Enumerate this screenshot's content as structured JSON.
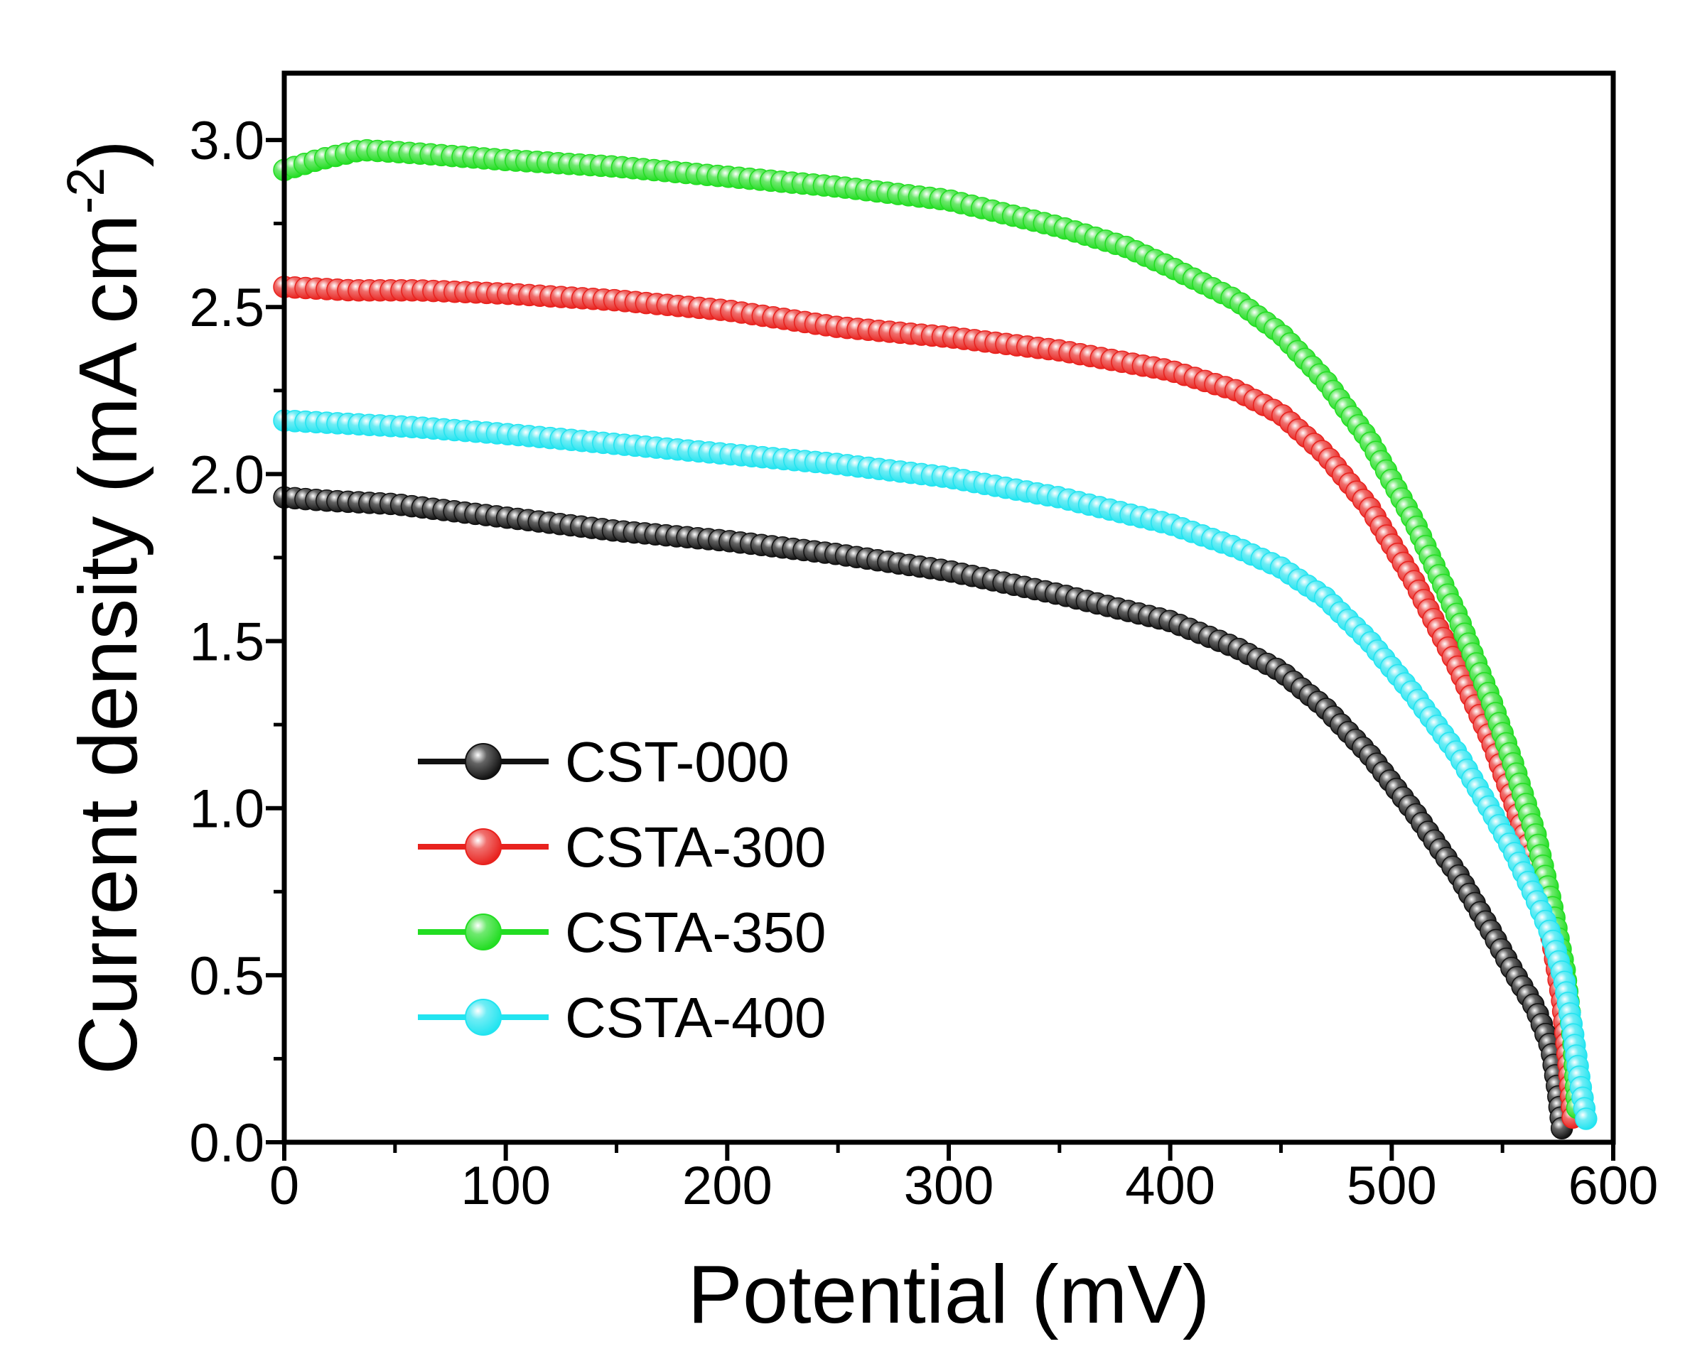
{
  "chart_data": {
    "type": "scatter",
    "title": "",
    "xlabel": "Potential (mV)",
    "ylabel": "Current density (mA cm",
    "ylabel_superscript": "-2",
    "ylabel_close": ")",
    "xlim": [
      0,
      600
    ],
    "ylim": [
      0,
      3.2
    ],
    "xticks": [
      0,
      100,
      200,
      300,
      400,
      500,
      600
    ],
    "xtick_labels": [
      "0",
      "100",
      "200",
      "300",
      "400",
      "500",
      "600"
    ],
    "yticks": [
      0,
      0.5,
      1.0,
      1.5,
      2.0,
      2.5,
      3.0
    ],
    "ytick_labels": [
      "0.0",
      "0.5",
      "1.0",
      "1.5",
      "2.0",
      "2.5",
      "3.0"
    ],
    "grid": false,
    "legend_position": "lower-left",
    "series": [
      {
        "name": "CST-000",
        "color": "#111111",
        "points": [
          [
            0,
            1.93
          ],
          [
            20,
            1.92
          ],
          [
            50,
            1.91
          ],
          [
            100,
            1.87
          ],
          [
            150,
            1.83
          ],
          [
            200,
            1.8
          ],
          [
            250,
            1.76
          ],
          [
            300,
            1.71
          ],
          [
            350,
            1.64
          ],
          [
            400,
            1.56
          ],
          [
            430,
            1.48
          ],
          [
            450,
            1.41
          ],
          [
            470,
            1.3
          ],
          [
            490,
            1.16
          ],
          [
            510,
            0.99
          ],
          [
            530,
            0.8
          ],
          [
            545,
            0.63
          ],
          [
            555,
            0.51
          ],
          [
            565,
            0.4
          ],
          [
            572,
            0.28
          ],
          [
            575,
            0.15
          ],
          [
            577,
            0.03
          ]
        ]
      },
      {
        "name": "CSTA-300",
        "color": "#e8221e",
        "points": [
          [
            0,
            2.56
          ],
          [
            30,
            2.55
          ],
          [
            60,
            2.55
          ],
          [
            100,
            2.54
          ],
          [
            150,
            2.52
          ],
          [
            200,
            2.49
          ],
          [
            250,
            2.44
          ],
          [
            300,
            2.41
          ],
          [
            350,
            2.37
          ],
          [
            400,
            2.31
          ],
          [
            430,
            2.25
          ],
          [
            450,
            2.18
          ],
          [
            470,
            2.06
          ],
          [
            490,
            1.9
          ],
          [
            510,
            1.68
          ],
          [
            530,
            1.42
          ],
          [
            545,
            1.2
          ],
          [
            555,
            1.02
          ],
          [
            565,
            0.82
          ],
          [
            572,
            0.62
          ],
          [
            577,
            0.42
          ],
          [
            580,
            0.22
          ],
          [
            582,
            0.05
          ]
        ]
      },
      {
        "name": "CSTA-350",
        "color": "#22dd22",
        "points": [
          [
            0,
            2.91
          ],
          [
            15,
            2.94
          ],
          [
            35,
            2.97
          ],
          [
            60,
            2.96
          ],
          [
            100,
            2.94
          ],
          [
            150,
            2.92
          ],
          [
            200,
            2.89
          ],
          [
            250,
            2.86
          ],
          [
            300,
            2.82
          ],
          [
            350,
            2.74
          ],
          [
            380,
            2.68
          ],
          [
            400,
            2.62
          ],
          [
            430,
            2.52
          ],
          [
            450,
            2.42
          ],
          [
            470,
            2.28
          ],
          [
            490,
            2.1
          ],
          [
            510,
            1.86
          ],
          [
            530,
            1.57
          ],
          [
            545,
            1.32
          ],
          [
            555,
            1.13
          ],
          [
            565,
            0.92
          ],
          [
            572,
            0.72
          ],
          [
            578,
            0.52
          ],
          [
            582,
            0.3
          ],
          [
            584,
            0.08
          ]
        ]
      },
      {
        "name": "CSTA-400",
        "color": "#22e4f0",
        "points": [
          [
            0,
            2.16
          ],
          [
            30,
            2.15
          ],
          [
            60,
            2.14
          ],
          [
            100,
            2.12
          ],
          [
            150,
            2.09
          ],
          [
            200,
            2.06
          ],
          [
            250,
            2.03
          ],
          [
            300,
            1.99
          ],
          [
            350,
            1.93
          ],
          [
            400,
            1.85
          ],
          [
            430,
            1.78
          ],
          [
            450,
            1.72
          ],
          [
            470,
            1.63
          ],
          [
            490,
            1.5
          ],
          [
            510,
            1.34
          ],
          [
            530,
            1.16
          ],
          [
            545,
            0.99
          ],
          [
            555,
            0.87
          ],
          [
            565,
            0.73
          ],
          [
            572,
            0.62
          ],
          [
            578,
            0.48
          ],
          [
            582,
            0.32
          ],
          [
            585,
            0.18
          ],
          [
            588,
            0.06
          ]
        ]
      }
    ]
  }
}
